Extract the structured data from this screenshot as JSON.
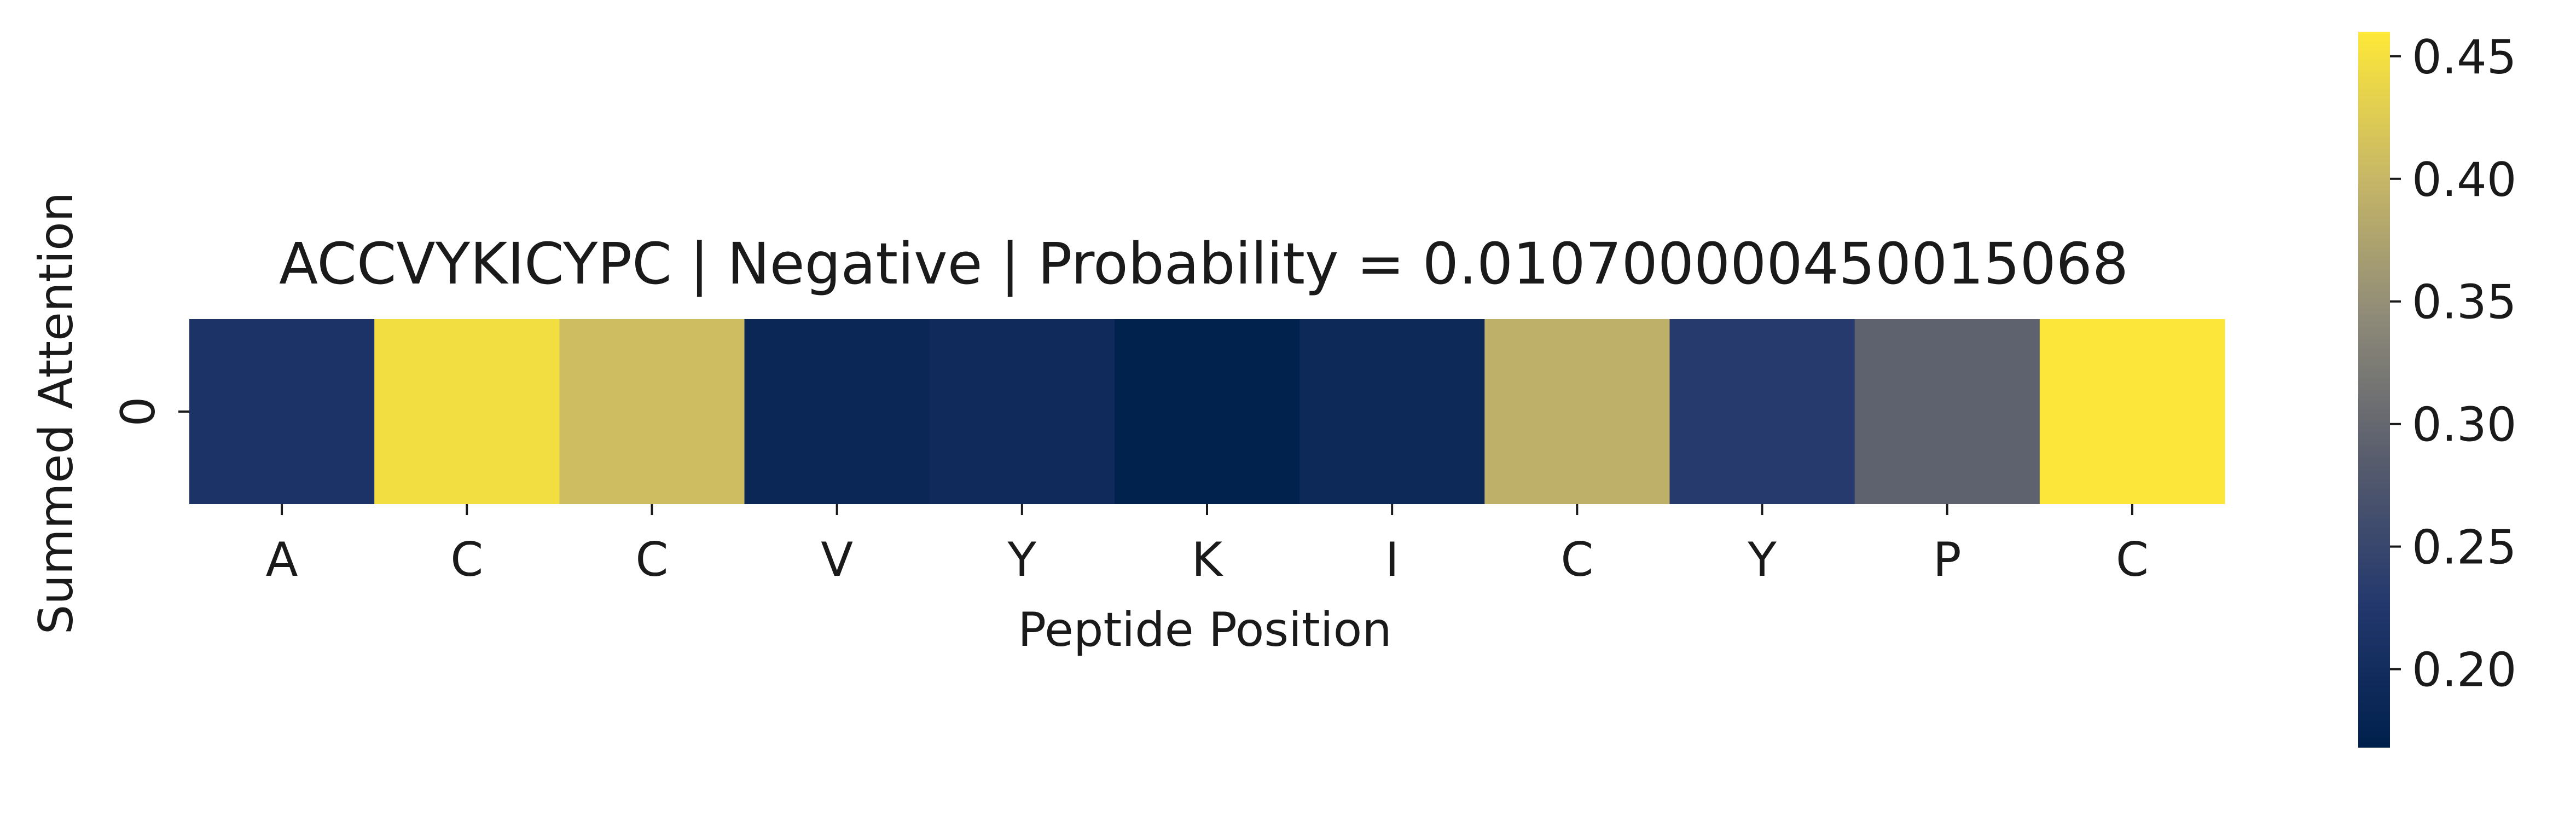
{
  "chart_data": {
    "type": "heatmap",
    "title": "ACCVYKICYPC | Negative | Probability = 0.010700000450015068",
    "xlabel": "Peptide Position",
    "ylabel": "Summed Attention",
    "x_categories": [
      "A",
      "C",
      "C",
      "V",
      "Y",
      "K",
      "I",
      "C",
      "Y",
      "P",
      "C"
    ],
    "y_categories": [
      "0"
    ],
    "values": [
      [
        0.215,
        0.448,
        0.408,
        0.185,
        0.195,
        0.172,
        0.19,
        0.392,
        0.23,
        0.292,
        0.458
      ]
    ],
    "colormap": "cividis",
    "colorbar": {
      "range": [
        0.168,
        0.46
      ],
      "ticks": [
        0.2,
        0.25,
        0.3,
        0.35,
        0.4,
        0.45
      ],
      "tick_labels": [
        "0.20",
        "0.25",
        "0.30",
        "0.35",
        "0.40",
        "0.45"
      ]
    },
    "grid": false
  }
}
